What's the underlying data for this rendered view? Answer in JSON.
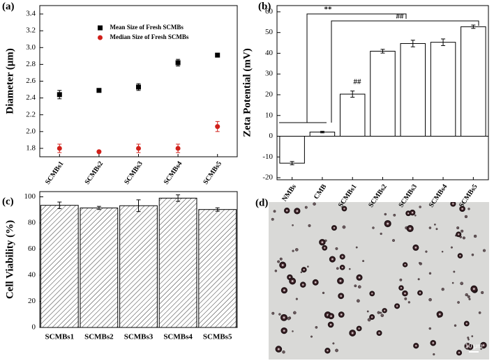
{
  "chart_data": [
    {
      "type": "scatter",
      "label": "(a)",
      "ylabel": "Diameter (μm)",
      "categories": [
        "SCMBs1",
        "SCMBs2",
        "SCMBs3",
        "SCMBs4",
        "SCMBs5"
      ],
      "series": [
        {
          "name": "Mean Size of Fresh SCMBs",
          "color": "#000000",
          "marker": "square",
          "values": [
            2.44,
            2.49,
            2.53,
            2.82,
            2.91
          ],
          "errors": [
            0.05,
            0.01,
            0.04,
            0.04,
            0.01
          ]
        },
        {
          "name": "Median Size of Fresh SCMBs",
          "color": "#d0201a",
          "marker": "circle",
          "values": [
            1.8,
            1.76,
            1.8,
            1.8,
            2.06
          ],
          "errors": [
            0.05,
            0.005,
            0.05,
            0.05,
            0.06
          ]
        }
      ],
      "ylim": [
        1.7,
        3.5
      ],
      "yticks": [
        1.8,
        {
          "value": 2,
          "label": "2.0"
        },
        2.2,
        2.4,
        2.6,
        2.8,
        {
          "value": 3,
          "label": "3.0"
        },
        3.2,
        3.4
      ],
      "legend": "upper center"
    },
    {
      "type": "bar",
      "label": "(b)",
      "ylabel": "Zeta Potential (mV)",
      "categories": [
        "NMBs",
        "CMB",
        "SCMBs1",
        "SCMBs2",
        "SCMBs3",
        "SCMBs4",
        "SCMBs5"
      ],
      "values": [
        -13,
        2,
        20.3,
        41,
        44.7,
        45.3,
        52.8
      ],
      "errors": [
        0.8,
        0.4,
        1.5,
        0.9,
        1.6,
        1.6,
        0.8
      ],
      "color": "#ffffff",
      "ylim": [
        -21,
        63
      ],
      "yticks": [
        -20,
        -10,
        0,
        10,
        20,
        30,
        40,
        50,
        60
      ],
      "annotations": [
        "**",
        "##",
        "##"
      ]
    },
    {
      "type": "bar",
      "label": "(c)",
      "ylabel": "Cell Viability (%)",
      "categories": [
        "SCMBs1",
        "SCMBs2",
        "SCMBs3",
        "SCMBs4",
        "SCMBs5"
      ],
      "values": [
        93.5,
        91.5,
        93.2,
        99,
        90.3
      ],
      "errors": [
        2.5,
        1.2,
        4.5,
        2.5,
        1.3
      ],
      "color": "#ffffff",
      "hatch": true,
      "ylim": [
        0,
        104
      ],
      "yticks": [
        0,
        20,
        40,
        60,
        80,
        100
      ]
    }
  ],
  "image_panel": {
    "label": "(d)",
    "scale_bar": "10 μm"
  }
}
